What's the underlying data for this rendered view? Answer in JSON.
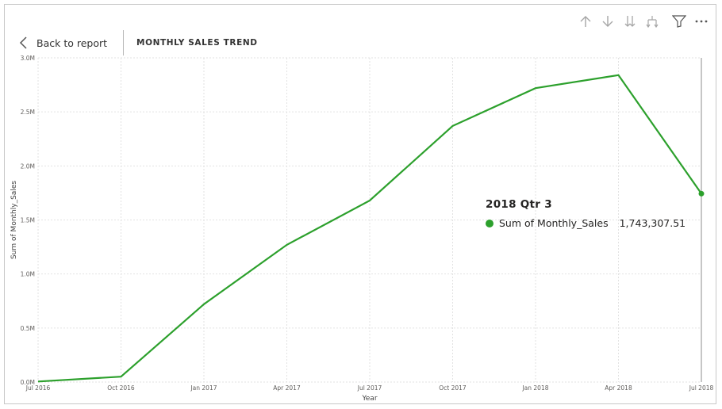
{
  "header": {
    "back_label": "Back to report",
    "title": "MONTHLY SALES TREND"
  },
  "toolbar": {
    "icons": [
      "arrow-up-icon",
      "arrow-down-icon",
      "double-arrow-down-icon",
      "expand-hierarchy-icon",
      "filter-icon",
      "more-options-icon"
    ]
  },
  "colors": {
    "line": "#2ca02c",
    "grid": "#e2e2e2",
    "axis_text": "#605e5c",
    "hover_line": "#a0a0a0"
  },
  "tooltip": {
    "title": "2018 Qtr 3",
    "series_label": "Sum of Monthly_Sales",
    "value": "1,743,307.51"
  },
  "chart_data": {
    "type": "line",
    "title": "",
    "xlabel": "Year",
    "ylabel": "Sum of Monthly_Sales",
    "categories": [
      "Jul 2016",
      "Oct 2016",
      "Jan 2017",
      "Apr 2017",
      "Jul 2017",
      "Oct 2017",
      "Jan 2018",
      "Apr 2018",
      "Jul 2018"
    ],
    "series": [
      {
        "name": "Sum of Monthly_Sales",
        "values": [
          5000,
          50000,
          720000,
          1270000,
          1680000,
          2370000,
          2720000,
          2840000,
          1743307.51
        ]
      }
    ],
    "y_ticks": [
      "0.0M",
      "0.5M",
      "1.0M",
      "1.5M",
      "2.0M",
      "2.5M",
      "3.0M"
    ],
    "y_tick_values": [
      0,
      500000,
      1000000,
      1500000,
      2000000,
      2500000,
      3000000
    ],
    "ylim": [
      0,
      3000000
    ],
    "grid": true,
    "highlighted_index": 8
  }
}
